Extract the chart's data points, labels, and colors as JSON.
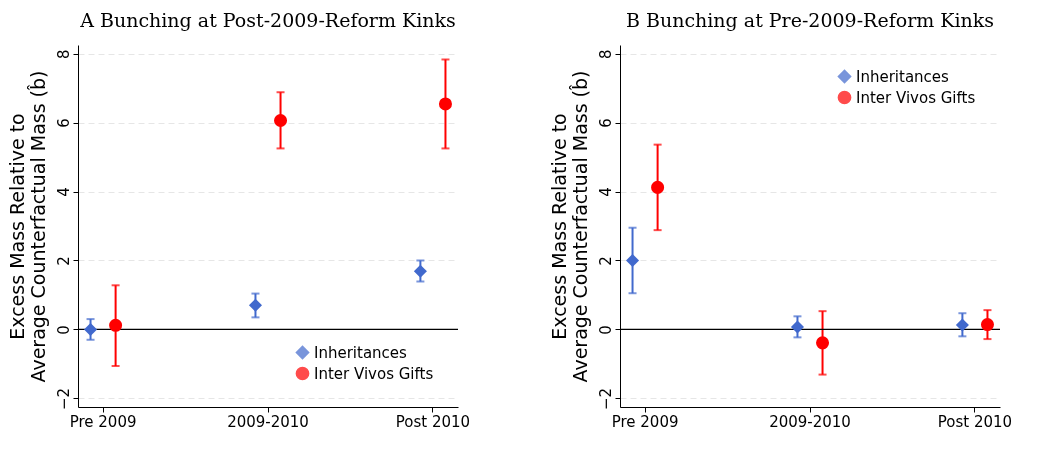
{
  "chart_data": [
    {
      "type": "scatter",
      "title": "A Bunching at Post-2009-Reform Kinks",
      "ylabel": "Excess Mass Relative to\nAverage Counterfactual Mass (b̂)",
      "categories": [
        "Pre 2009",
        "2009-2010",
        "Post 2010"
      ],
      "ylim": [
        -2.25,
        8.25
      ],
      "yticks": [
        -2,
        0,
        2,
        4,
        6,
        8
      ],
      "grid": "y",
      "legend": "bottom right",
      "ref_lines": [
        {
          "axis": "y",
          "value": 0,
          "color": "#000000"
        }
      ],
      "series": [
        {
          "name": "Inheritances",
          "color": "#4169cd",
          "marker": "diamond",
          "values": [
            0.0,
            0.7,
            1.69
          ],
          "errors": [
            [
              -0.3,
              0.3
            ],
            [
              0.35,
              1.04
            ],
            [
              1.39,
              2.0
            ]
          ]
        },
        {
          "name": "Inter Vivos Gifts",
          "color": "#ff0000",
          "marker": "circle",
          "values": [
            0.12,
            6.06,
            6.54
          ],
          "errors": [
            [
              -1.06,
              1.28
            ],
            [
              5.25,
              6.88
            ],
            [
              5.25,
              7.83
            ]
          ]
        }
      ]
    },
    {
      "type": "scatter",
      "title": "B Bunching at Pre-2009-Reform Kinks",
      "ylabel": "Excess Mass Relative to\nAverage Counterfactual Mass (b̂)",
      "categories": [
        "Pre 2009",
        "2009-2010",
        "Post 2010"
      ],
      "ylim": [
        -2.25,
        8.25
      ],
      "yticks": [
        -2,
        0,
        2,
        4,
        6,
        8
      ],
      "grid": "y",
      "legend": "top right",
      "ref_lines": [
        {
          "axis": "y",
          "value": 0,
          "color": "#000000"
        }
      ],
      "series": [
        {
          "name": "Inheritances",
          "color": "#4169cd",
          "marker": "diamond",
          "values": [
            2.0,
            0.07,
            0.13
          ],
          "errors": [
            [
              1.05,
              2.95
            ],
            [
              -0.23,
              0.38
            ],
            [
              -0.2,
              0.47
            ]
          ]
        },
        {
          "name": "Inter Vivos Gifts",
          "color": "#ff0000",
          "marker": "circle",
          "values": [
            4.12,
            -0.39,
            0.14
          ],
          "errors": [
            [
              2.88,
              5.36
            ],
            [
              -1.31,
              0.53
            ],
            [
              -0.28,
              0.56
            ]
          ]
        }
      ]
    }
  ]
}
